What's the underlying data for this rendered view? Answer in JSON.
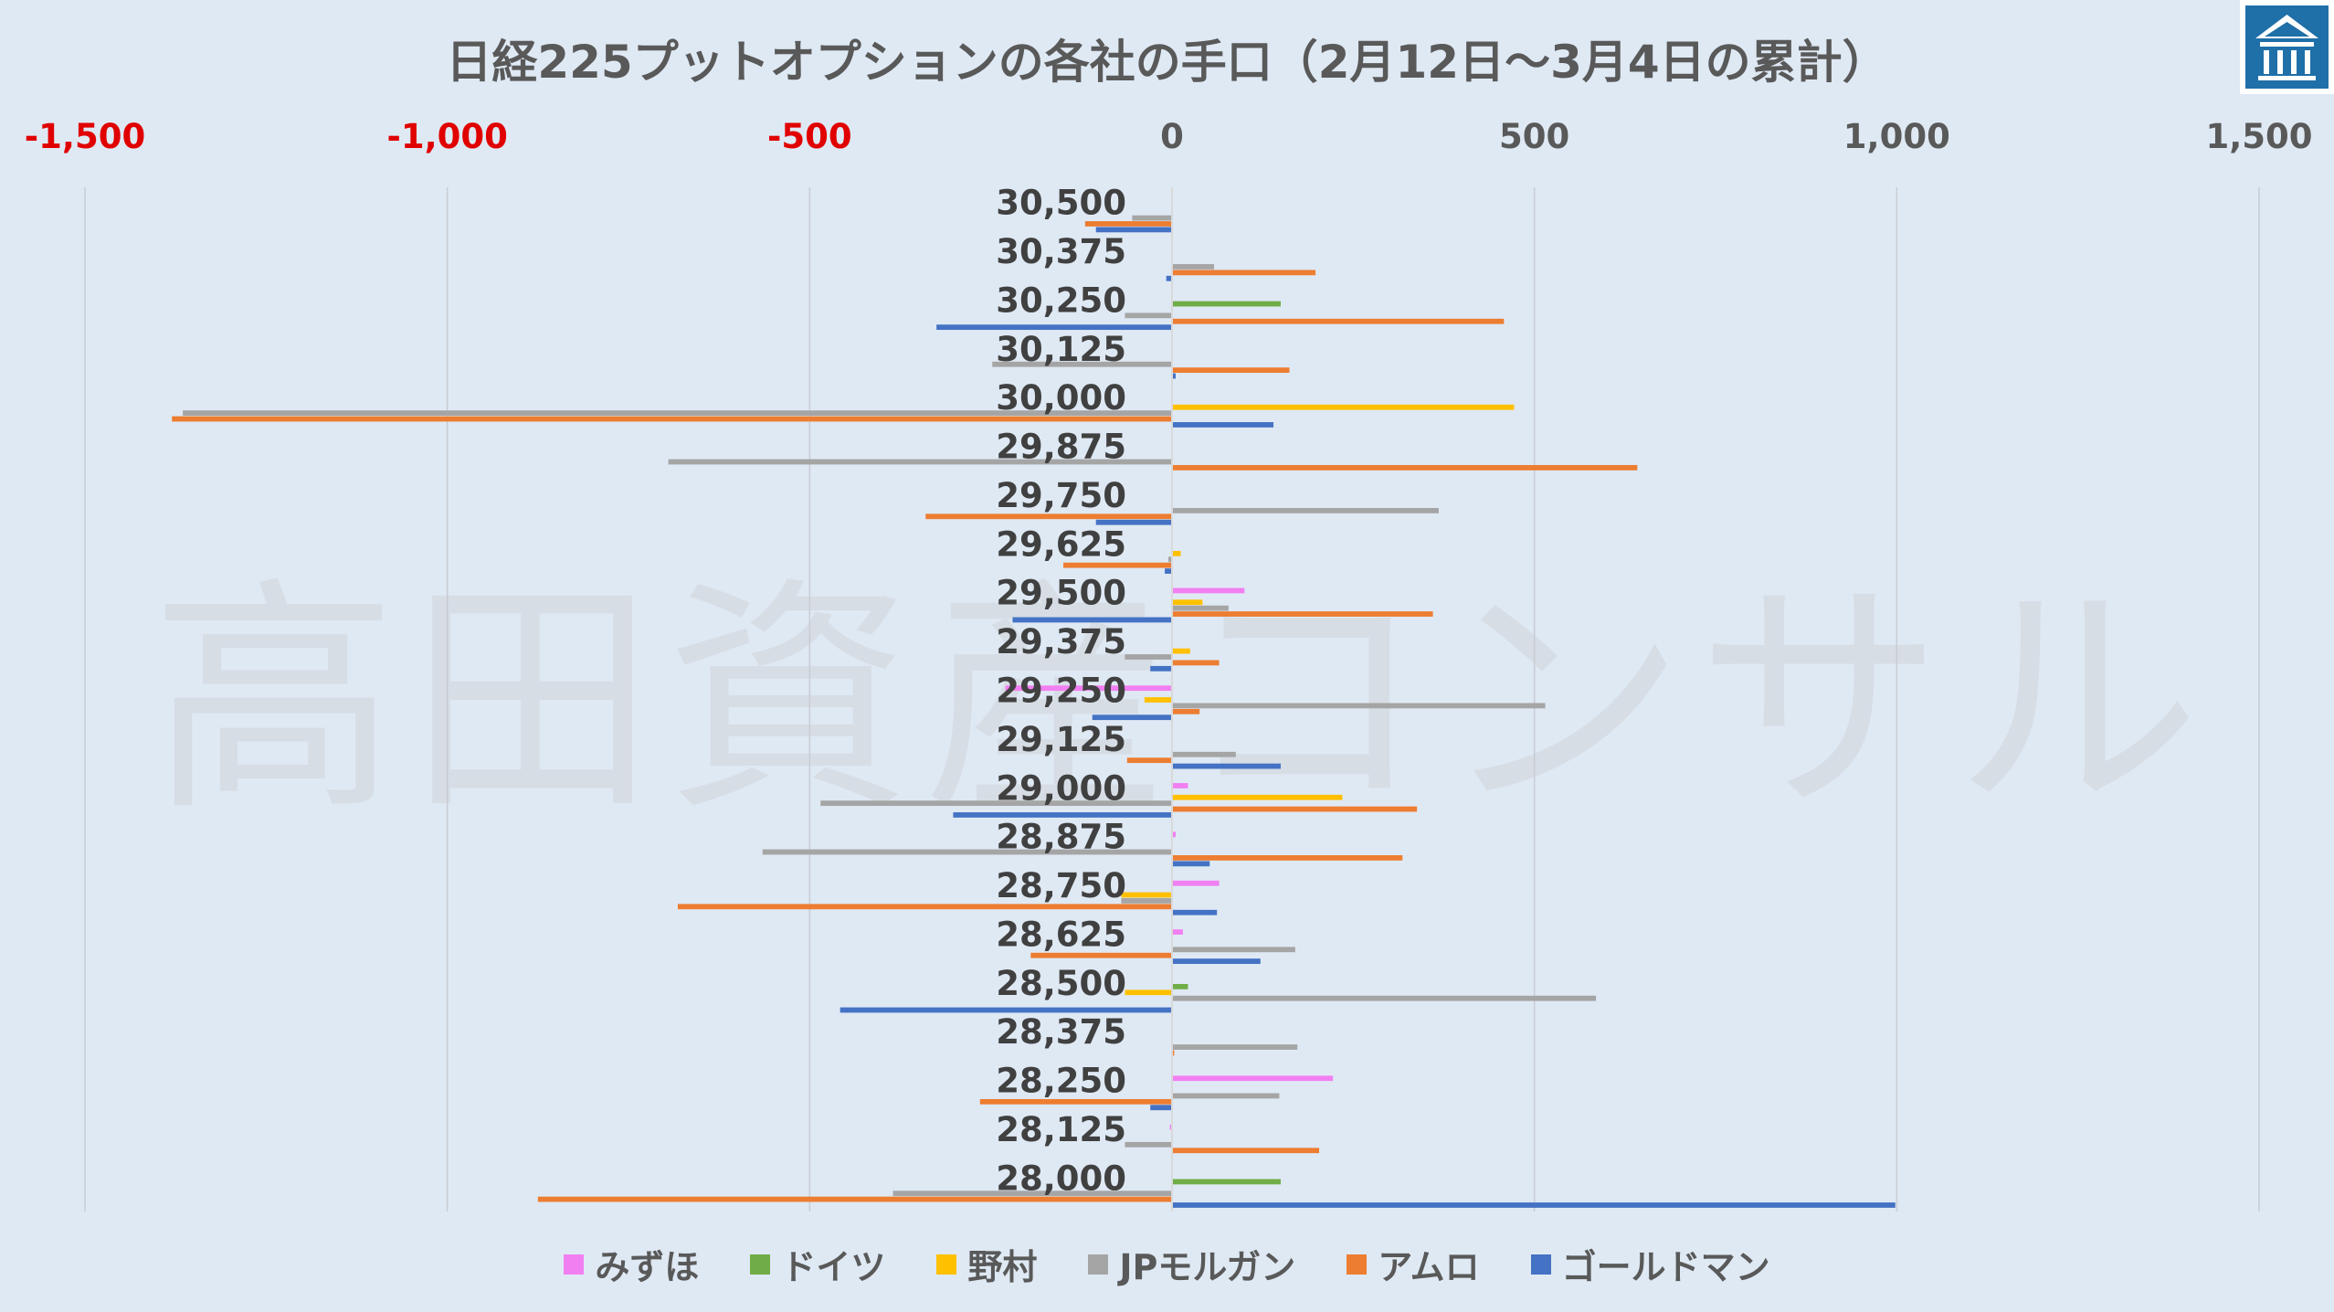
{
  "chart_data": {
    "type": "bar",
    "orientation": "horizontal",
    "title": "日経225プットオプションの各社の手口（2月12日〜3月4日の累計）",
    "watermark": "高田資産コンサル",
    "xlim": [
      -1500,
      1500
    ],
    "x_ticks": [
      -1500,
      -1000,
      -500,
      0,
      500,
      1000,
      1500
    ],
    "x_tick_labels": [
      "-1,500",
      "-1,000",
      "-500",
      "0",
      "500",
      "1,000",
      "1,500"
    ],
    "negative_tick_color": "#e00000",
    "grid": "vertical",
    "legend_position": "bottom",
    "categories": [
      "30,500",
      "30,375",
      "30,250",
      "30,125",
      "30,000",
      "29,875",
      "29,750",
      "29,625",
      "29,500",
      "29,375",
      "29,250",
      "29,125",
      "29,000",
      "28,875",
      "28,750",
      "28,625",
      "28,500",
      "28,375",
      "28,250",
      "28,125",
      "28,000"
    ],
    "series": [
      {
        "name": "みずほ",
        "color": "#f27ff2",
        "values": [
          0,
          0,
          0,
          0,
          0,
          0,
          0,
          0,
          100,
          0,
          -230,
          0,
          22,
          5,
          65,
          15,
          0,
          0,
          222,
          -3,
          0
        ]
      },
      {
        "name": "ドイツ",
        "color": "#70ad47",
        "values": [
          0,
          0,
          150,
          0,
          0,
          0,
          0,
          0,
          0,
          0,
          0,
          0,
          0,
          0,
          0,
          0,
          22,
          0,
          0,
          0,
          150
        ]
      },
      {
        "name": "野村",
        "color": "#ffc000",
        "values": [
          0,
          0,
          0,
          0,
          472,
          0,
          0,
          12,
          42,
          25,
          -38,
          0,
          235,
          0,
          -70,
          0,
          -65,
          0,
          0,
          0,
          0
        ]
      },
      {
        "name": "JPモルガン",
        "color": "#a5a5a5",
        "values": [
          -55,
          58,
          -65,
          -248,
          -1365,
          -695,
          368,
          -5,
          78,
          -65,
          515,
          88,
          -485,
          -565,
          -70,
          170,
          585,
          173,
          148,
          -65,
          -385
        ]
      },
      {
        "name": "アムロ",
        "color": "#ed7d31",
        "values": [
          -120,
          198,
          458,
          162,
          -1380,
          642,
          -340,
          -150,
          360,
          65,
          38,
          -62,
          338,
          318,
          -682,
          -195,
          0,
          3,
          -265,
          203,
          -875
        ]
      },
      {
        "name": "ゴールドマン",
        "color": "#4472c4",
        "values": [
          -105,
          -8,
          -325,
          5,
          140,
          0,
          -105,
          -10,
          -220,
          -30,
          -110,
          150,
          -302,
          52,
          62,
          122,
          -458,
          0,
          -30,
          0,
          998
        ]
      }
    ]
  },
  "logo": {
    "name": "logo-icon",
    "color": "#1f6fa8"
  }
}
